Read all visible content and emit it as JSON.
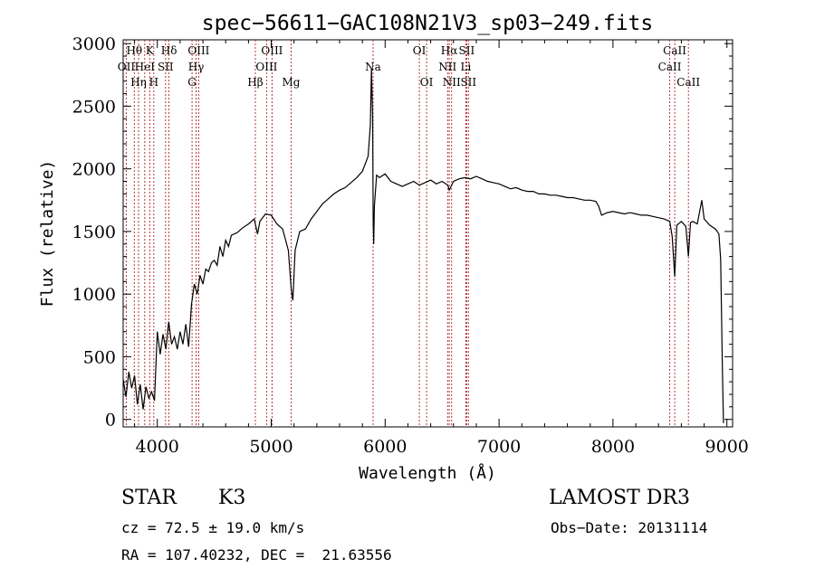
{
  "chart_data": {
    "type": "line",
    "title": "spec−56611−GAC108N21V3_sp03−249.fits",
    "xlabel": "Wavelength (Å)",
    "ylabel": "Flux (relative)",
    "xlim": [
      3700,
      9050
    ],
    "ylim": [
      -60,
      3030
    ],
    "x_ticks": [
      4000,
      5000,
      6000,
      7000,
      8000,
      9000
    ],
    "x_tick_labels": [
      "4000",
      "5000",
      "6000",
      "7000",
      "8000",
      "9000"
    ],
    "y_ticks": [
      0,
      500,
      1000,
      1500,
      2000,
      2500,
      3000
    ],
    "y_tick_labels": [
      "0",
      "500",
      "1000",
      "1500",
      "2000",
      "2500",
      "3000"
    ],
    "grid": false,
    "line_color": "#000000",
    "marker_color": "#b22222",
    "series": [
      {
        "name": "flux",
        "points": [
          [
            3700,
            320
          ],
          [
            3725,
            180
          ],
          [
            3750,
            380
          ],
          [
            3775,
            250
          ],
          [
            3800,
            350
          ],
          [
            3825,
            120
          ],
          [
            3850,
            280
          ],
          [
            3875,
            80
          ],
          [
            3900,
            260
          ],
          [
            3925,
            170
          ],
          [
            3950,
            220
          ],
          [
            3975,
            150
          ],
          [
            4000,
            700
          ],
          [
            4025,
            520
          ],
          [
            4050,
            680
          ],
          [
            4075,
            560
          ],
          [
            4100,
            780
          ],
          [
            4125,
            600
          ],
          [
            4150,
            660
          ],
          [
            4175,
            560
          ],
          [
            4200,
            700
          ],
          [
            4225,
            600
          ],
          [
            4250,
            760
          ],
          [
            4275,
            580
          ],
          [
            4300,
            920
          ],
          [
            4325,
            1080
          ],
          [
            4350,
            1000
          ],
          [
            4375,
            1150
          ],
          [
            4400,
            1080
          ],
          [
            4425,
            1200
          ],
          [
            4450,
            1180
          ],
          [
            4475,
            1250
          ],
          [
            4500,
            1270
          ],
          [
            4525,
            1230
          ],
          [
            4550,
            1380
          ],
          [
            4575,
            1300
          ],
          [
            4600,
            1430
          ],
          [
            4625,
            1380
          ],
          [
            4650,
            1470
          ],
          [
            4700,
            1490
          ],
          [
            4750,
            1530
          ],
          [
            4800,
            1560
          ],
          [
            4850,
            1600
          ],
          [
            4880,
            1480
          ],
          [
            4900,
            1580
          ],
          [
            4950,
            1640
          ],
          [
            5000,
            1630
          ],
          [
            5050,
            1560
          ],
          [
            5100,
            1520
          ],
          [
            5150,
            1350
          ],
          [
            5175,
            1050
          ],
          [
            5190,
            950
          ],
          [
            5210,
            1350
          ],
          [
            5250,
            1500
          ],
          [
            5300,
            1520
          ],
          [
            5350,
            1600
          ],
          [
            5400,
            1660
          ],
          [
            5450,
            1720
          ],
          [
            5500,
            1760
          ],
          [
            5550,
            1800
          ],
          [
            5600,
            1830
          ],
          [
            5650,
            1850
          ],
          [
            5700,
            1890
          ],
          [
            5750,
            1930
          ],
          [
            5800,
            1980
          ],
          [
            5850,
            2100
          ],
          [
            5870,
            2350
          ],
          [
            5880,
            2800
          ],
          [
            5890,
            2420
          ],
          [
            5895,
            1580
          ],
          [
            5900,
            1400
          ],
          [
            5905,
            1700
          ],
          [
            5925,
            1950
          ],
          [
            5950,
            1930
          ],
          [
            6000,
            1960
          ],
          [
            6050,
            1900
          ],
          [
            6100,
            1880
          ],
          [
            6150,
            1860
          ],
          [
            6200,
            1880
          ],
          [
            6250,
            1900
          ],
          [
            6300,
            1870
          ],
          [
            6350,
            1890
          ],
          [
            6400,
            1910
          ],
          [
            6450,
            1880
          ],
          [
            6500,
            1900
          ],
          [
            6550,
            1870
          ],
          [
            6563,
            1830
          ],
          [
            6600,
            1900
          ],
          [
            6650,
            1920
          ],
          [
            6700,
            1930
          ],
          [
            6750,
            1920
          ],
          [
            6800,
            1940
          ],
          [
            6850,
            1920
          ],
          [
            6900,
            1900
          ],
          [
            6950,
            1890
          ],
          [
            7000,
            1880
          ],
          [
            7050,
            1860
          ],
          [
            7100,
            1840
          ],
          [
            7150,
            1850
          ],
          [
            7200,
            1830
          ],
          [
            7250,
            1820
          ],
          [
            7300,
            1820
          ],
          [
            7350,
            1800
          ],
          [
            7400,
            1800
          ],
          [
            7450,
            1790
          ],
          [
            7500,
            1790
          ],
          [
            7550,
            1780
          ],
          [
            7600,
            1770
          ],
          [
            7650,
            1770
          ],
          [
            7700,
            1760
          ],
          [
            7750,
            1750
          ],
          [
            7800,
            1750
          ],
          [
            7850,
            1740
          ],
          [
            7875,
            1700
          ],
          [
            7900,
            1630
          ],
          [
            7950,
            1650
          ],
          [
            8000,
            1660
          ],
          [
            8050,
            1650
          ],
          [
            8100,
            1640
          ],
          [
            8150,
            1650
          ],
          [
            8200,
            1640
          ],
          [
            8250,
            1630
          ],
          [
            8300,
            1630
          ],
          [
            8350,
            1620
          ],
          [
            8400,
            1610
          ],
          [
            8450,
            1600
          ],
          [
            8498,
            1580
          ],
          [
            8520,
            1460
          ],
          [
            8542,
            1140
          ],
          [
            8560,
            1550
          ],
          [
            8600,
            1580
          ],
          [
            8640,
            1540
          ],
          [
            8662,
            1300
          ],
          [
            8680,
            1570
          ],
          [
            8700,
            1580
          ],
          [
            8740,
            1560
          ],
          [
            8780,
            1750
          ],
          [
            8800,
            1600
          ],
          [
            8850,
            1550
          ],
          [
            8900,
            1520
          ],
          [
            8930,
            1480
          ],
          [
            8945,
            1280
          ],
          [
            8960,
            420
          ],
          [
            8970,
            -30
          ]
        ]
      }
    ],
    "line_markers": [
      {
        "name": "OII",
        "wavelength": 3727,
        "label": "OII",
        "row": 2
      },
      {
        "name": "Hθ",
        "wavelength": 3798,
        "label": "Hθ",
        "row": 1
      },
      {
        "name": "Hη",
        "wavelength": 3835,
        "label": "Hη",
        "row": 3
      },
      {
        "name": "HeI",
        "wavelength": 3889,
        "label": "HeI",
        "row": 2
      },
      {
        "name": "K",
        "wavelength": 3934,
        "label": "K",
        "row": 1
      },
      {
        "name": "H",
        "wavelength": 3969,
        "label": "H",
        "row": 3
      },
      {
        "name": "SII",
        "wavelength": 4072,
        "label": "SII",
        "row": 2
      },
      {
        "name": "Hδ",
        "wavelength": 4102,
        "label": "Hδ",
        "row": 1
      },
      {
        "name": "G",
        "wavelength": 4305,
        "label": "G",
        "row": 3
      },
      {
        "name": "Hγ",
        "wavelength": 4341,
        "label": "Hγ",
        "row": 2
      },
      {
        "name": "OIII",
        "wavelength": 4363,
        "label": "OIII",
        "row": 1
      },
      {
        "name": "Hβ",
        "wavelength": 4861,
        "label": "Hβ",
        "row": 3
      },
      {
        "name": "OIII",
        "wavelength": 4959,
        "label": "OIII",
        "row": 2
      },
      {
        "name": "OIII",
        "wavelength": 5007,
        "label": "OIII",
        "row": 1
      },
      {
        "name": "Mg",
        "wavelength": 5175,
        "label": "Mg",
        "row": 3
      },
      {
        "name": "Na",
        "wavelength": 5894,
        "label": "Na",
        "row": 2
      },
      {
        "name": "OI",
        "wavelength": 6300,
        "label": "OI",
        "row": 1
      },
      {
        "name": "OI",
        "wavelength": 6364,
        "label": "OI",
        "row": 3
      },
      {
        "name": "NII",
        "wavelength": 6548,
        "label": "NII",
        "row": 2
      },
      {
        "name": "Hα",
        "wavelength": 6563,
        "label": "Hα",
        "row": 1
      },
      {
        "name": "NII",
        "wavelength": 6583,
        "label": "NII",
        "row": 3
      },
      {
        "name": "Li",
        "wavelength": 6708,
        "label": "Li",
        "row": 2
      },
      {
        "name": "SII",
        "wavelength": 6716,
        "label": "SII",
        "row": 1
      },
      {
        "name": "SII",
        "wavelength": 6731,
        "label": "SII",
        "row": 3
      },
      {
        "name": "CaII",
        "wavelength": 8498,
        "label": "CaII",
        "row": 2
      },
      {
        "name": "CaII",
        "wavelength": 8542,
        "label": "CaII",
        "row": 1
      },
      {
        "name": "CaII",
        "wavelength": 8662,
        "label": "CaII",
        "row": 3
      }
    ]
  },
  "info": {
    "object_class": "STAR",
    "subclass": "K3",
    "survey": "LAMOST DR3",
    "redshift_line": "cz = 72.5 ± 19.0 km/s",
    "obs_date": "Obs−Date: 20131114",
    "coords": "RA = 107.40232, DEC =  21.63556"
  }
}
